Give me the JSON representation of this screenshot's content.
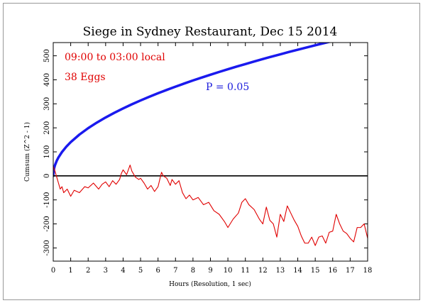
{
  "chart_data": {
    "type": "line",
    "title": "Siege in Sydney Restaurant, Dec 15 2014",
    "xlabel": "Hours (Resolution, 1 sec)",
    "ylabel": "Cumsum (Z^2 - 1)",
    "xlim": [
      0,
      18
    ],
    "ylim": [
      -355,
      555
    ],
    "x_ticks": [
      0,
      1,
      2,
      3,
      4,
      5,
      6,
      7,
      8,
      9,
      10,
      11,
      12,
      13,
      14,
      15,
      16,
      17,
      18
    ],
    "y_ticks": [
      -300,
      -200,
      -100,
      0,
      100,
      200,
      300,
      400,
      500
    ],
    "annotations": [
      {
        "text": "09:00 to 03:00 local",
        "color": "#e00000"
      },
      {
        "text": "38 Eggs",
        "color": "#e00000"
      },
      {
        "text": "P = 0.05",
        "color": "#1a1adc"
      }
    ],
    "series": [
      {
        "role": "p05-envelope",
        "color": "#1a1aee",
        "x": [
          0,
          0.05,
          0.1,
          0.2,
          0.3,
          0.5,
          0.75,
          1,
          1.5,
          2,
          2.5,
          3,
          3.5,
          4,
          4.5,
          5,
          5.5,
          6,
          6.5,
          7,
          7.5,
          8,
          8.5,
          9,
          9.5,
          10,
          10.5,
          11,
          11.5,
          12,
          12.5,
          13,
          13.5,
          14,
          14.5,
          15,
          15.5,
          16,
          16.5,
          17,
          17.5,
          18
        ],
        "y": [
          0,
          31.4,
          44.4,
          62.8,
          77,
          99.3,
          121.6,
          140.4,
          172,
          198.6,
          222,
          243.2,
          262.7,
          280.8,
          297.9,
          314,
          329.3,
          344,
          358,
          371.5,
          384.5,
          397.2,
          409.3,
          421.2,
          432.8,
          444,
          455,
          465.6,
          476.1,
          486.4,
          496.5,
          506.2,
          516,
          525.4,
          534.6,
          543.8,
          552.7,
          561.6,
          570.3,
          578.9,
          587.3,
          595.8
        ]
      },
      {
        "role": "baseline",
        "color": "#000000",
        "x": [
          0,
          18
        ],
        "y": [
          0,
          0
        ]
      },
      {
        "role": "cumulative-deviation",
        "color": "#e00000",
        "x": [
          0,
          0.1,
          0.2,
          0.3,
          0.4,
          0.5,
          0.6,
          0.8,
          1,
          1.2,
          1.5,
          1.8,
          2,
          2.3,
          2.6,
          2.8,
          3,
          3.2,
          3.4,
          3.6,
          3.8,
          3.9,
          4,
          4.2,
          4.4,
          4.5,
          4.7,
          4.9,
          5,
          5.2,
          5.4,
          5.6,
          5.8,
          6,
          6.2,
          6.3,
          6.5,
          6.7,
          6.8,
          7,
          7.2,
          7.4,
          7.6,
          7.8,
          8,
          8.3,
          8.6,
          8.9,
          9.2,
          9.5,
          9.8,
          10,
          10.3,
          10.6,
          10.8,
          11,
          11.2,
          11.5,
          11.8,
          12,
          12.2,
          12.4,
          12.6,
          12.8,
          13,
          13.2,
          13.4,
          13.6,
          13.8,
          14,
          14.2,
          14.4,
          14.6,
          14.8,
          15,
          15.2,
          15.4,
          15.6,
          15.8,
          16,
          16.2,
          16.4,
          16.6,
          16.8,
          17,
          17.2,
          17.4,
          17.6,
          17.8,
          18
        ],
        "y": [
          40,
          20,
          -5,
          -30,
          -55,
          -45,
          -70,
          -55,
          -85,
          -60,
          -70,
          -45,
          -50,
          -30,
          -55,
          -35,
          -25,
          -45,
          -20,
          -35,
          -15,
          10,
          25,
          5,
          45,
          20,
          -5,
          -15,
          -10,
          -30,
          -55,
          -40,
          -65,
          -45,
          15,
          0,
          -10,
          -40,
          -15,
          -35,
          -20,
          -70,
          -95,
          -80,
          -100,
          -90,
          -120,
          -110,
          -145,
          -160,
          -190,
          -215,
          -180,
          -155,
          -110,
          -95,
          -120,
          -140,
          -180,
          -200,
          -130,
          -185,
          -200,
          -255,
          -160,
          -190,
          -125,
          -155,
          -185,
          -210,
          -250,
          -280,
          -280,
          -255,
          -290,
          -255,
          -250,
          -280,
          -235,
          -230,
          -160,
          -200,
          -230,
          -240,
          -260,
          -275,
          -215,
          -215,
          -200,
          -260
        ]
      }
    ]
  }
}
